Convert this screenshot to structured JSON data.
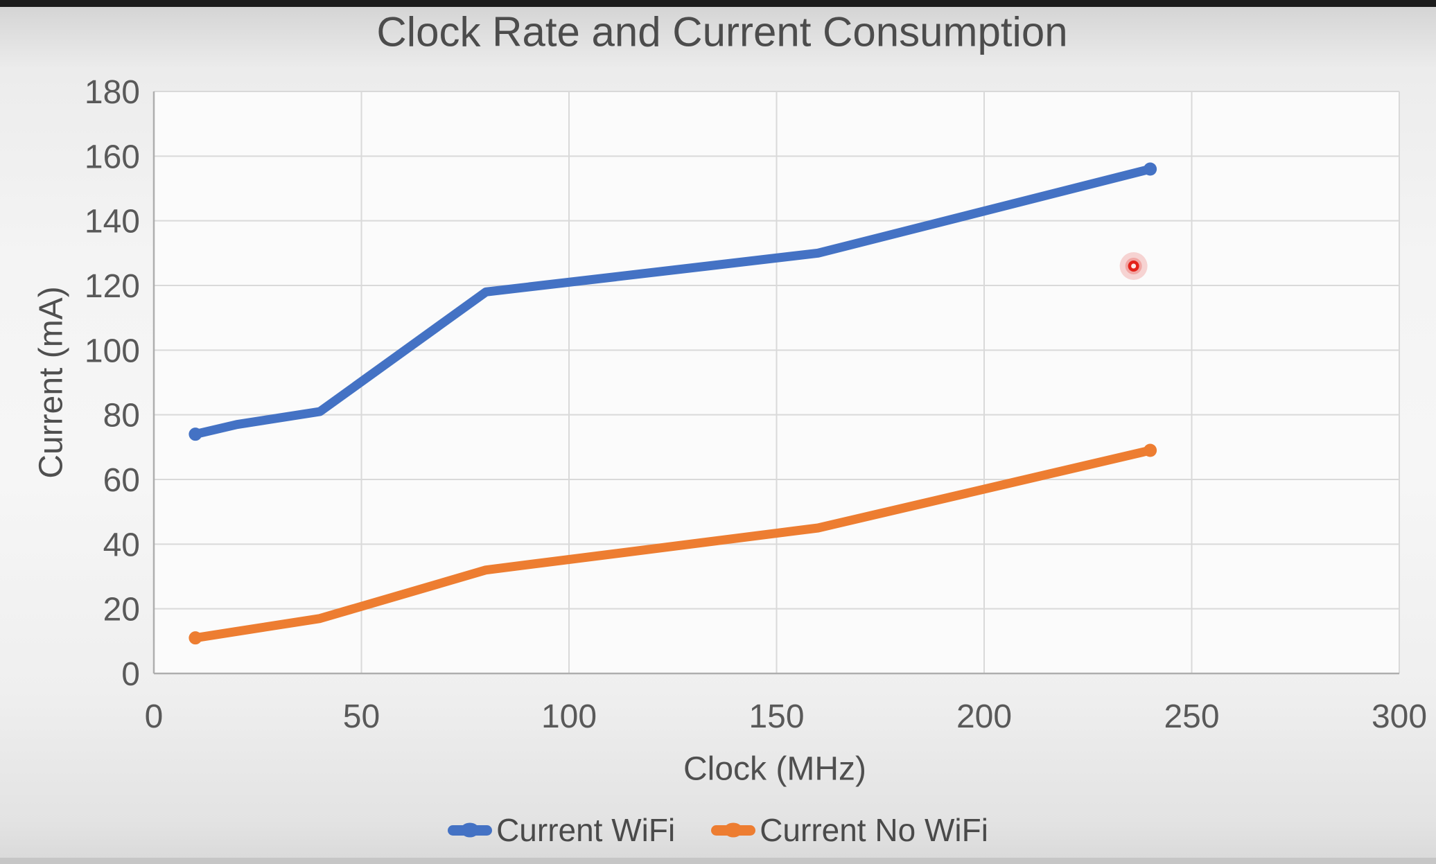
{
  "window": {
    "top_bar_color": "#1c1c1c",
    "bottom_bar_color": "#c6c6c6"
  },
  "chart_data": {
    "type": "line",
    "title": "Clock Rate and Current Consumption",
    "xlabel": "Clock (MHz)",
    "ylabel": "Current (mA)",
    "xlim": [
      0,
      300
    ],
    "ylim": [
      0,
      180
    ],
    "x_ticks": [
      0,
      50,
      100,
      150,
      200,
      250,
      300
    ],
    "y_ticks": [
      0,
      20,
      40,
      60,
      80,
      100,
      120,
      140,
      160,
      180
    ],
    "grid": true,
    "legend_position": "bottom",
    "x": [
      10,
      20,
      40,
      80,
      160,
      240
    ],
    "series": [
      {
        "name": "Current WiFi",
        "color": "#4472C4",
        "values": [
          74,
          77,
          81,
          118,
          130,
          156
        ]
      },
      {
        "name": "Current No WiFi",
        "color": "#ED7D31",
        "values": [
          11,
          13,
          17,
          32,
          45,
          69
        ]
      }
    ],
    "annotations": [
      {
        "type": "pointer-highlight-dot",
        "x": 236,
        "y": 126,
        "color": "#e3231a"
      }
    ],
    "styles": {
      "plot_fill": "#fbfbfb",
      "gridline_color": "#d9d9d9",
      "axis_border_color": "#aeaeae",
      "tick_label_color": "#595959",
      "title_color": "#4c4c4c",
      "axis_title_color": "#4f4f4f",
      "legend_text_color": "#4a4a4a"
    }
  }
}
